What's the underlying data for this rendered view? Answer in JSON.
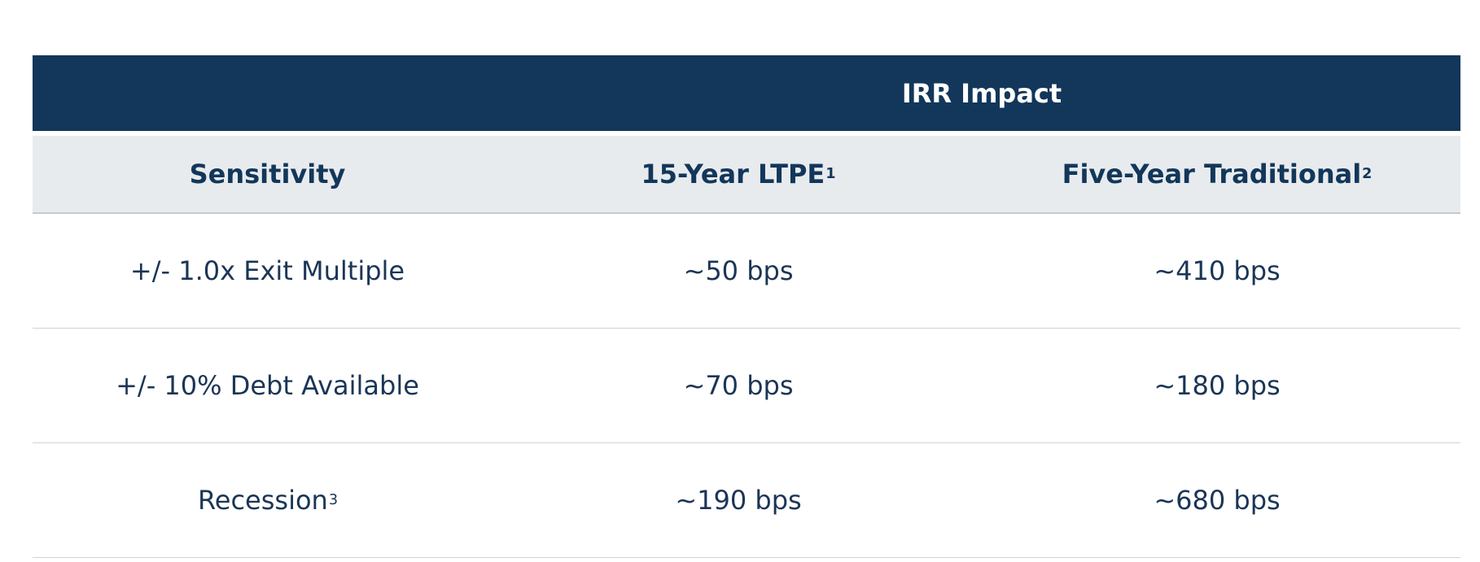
{
  "table": {
    "banner_title": "IRR Impact",
    "headers": [
      {
        "label": "Sensitivity",
        "sup": ""
      },
      {
        "label": "15-Year LTPE",
        "sup": "1"
      },
      {
        "label": "Five-Year Traditional",
        "sup": "2"
      }
    ],
    "rows": [
      {
        "sensitivity": "+/- 1.0x Exit Multiple",
        "sensitivity_sup": "",
        "ltpe": "~50 bps",
        "traditional": "~410 bps"
      },
      {
        "sensitivity": "+/- 10% Debt Available",
        "sensitivity_sup": "",
        "ltpe": "~70 bps",
        "traditional": "~180 bps"
      },
      {
        "sensitivity": "Recession",
        "sensitivity_sup": "3",
        "ltpe": "~190 bps",
        "traditional": "~680 bps"
      }
    ]
  }
}
